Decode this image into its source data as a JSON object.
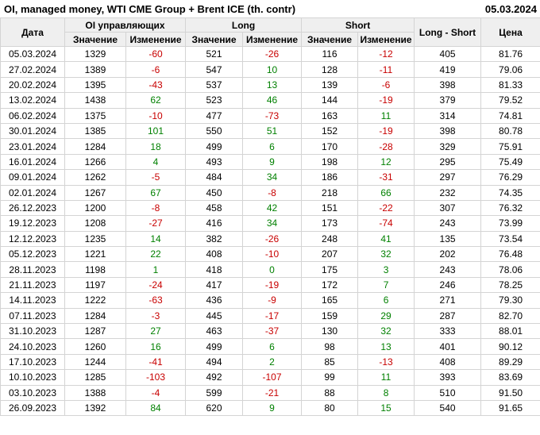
{
  "page": {
    "title": "OI, managed money, WTI CME Group + Brent ICE (th. contr)",
    "report_date": "05.03.2024"
  },
  "colors": {
    "positive": "#008000",
    "negative": "#c80000",
    "border": "#d4d4d4",
    "header_bg": "#efefef"
  },
  "chart_data": {
    "type": "table",
    "title": "OI, managed money, WTI CME Group + Brent ICE (th. contr)",
    "report_date": "05.03.2024",
    "column_groups": [
      {
        "label": "Дата",
        "span": 1
      },
      {
        "label": "OI управляющих",
        "span": 2
      },
      {
        "label": "Long",
        "span": 2
      },
      {
        "label": "Short",
        "span": 2
      },
      {
        "label": "Long - Short",
        "span": 1
      },
      {
        "label": "Цена",
        "span": 1
      }
    ],
    "sub_headers": [
      "Значение",
      "Изменение",
      "Значение",
      "Изменение",
      "Значение",
      "Изменение"
    ],
    "columns": [
      "Дата",
      "OI Значение",
      "OI Изменение",
      "Long Значение",
      "Long Изменение",
      "Short Значение",
      "Short Изменение",
      "Long - Short",
      "Цена"
    ],
    "change_column_indexes": [
      2,
      4,
      6
    ],
    "rows": [
      [
        "05.03.2024",
        "1329",
        "-60",
        "521",
        "-26",
        "116",
        "-12",
        "405",
        "81.76"
      ],
      [
        "27.02.2024",
        "1389",
        "-6",
        "547",
        "10",
        "128",
        "-11",
        "419",
        "79.06"
      ],
      [
        "20.02.2024",
        "1395",
        "-43",
        "537",
        "13",
        "139",
        "-6",
        "398",
        "81.33"
      ],
      [
        "13.02.2024",
        "1438",
        "62",
        "523",
        "46",
        "144",
        "-19",
        "379",
        "79.52"
      ],
      [
        "06.02.2024",
        "1375",
        "-10",
        "477",
        "-73",
        "163",
        "11",
        "314",
        "74.81"
      ],
      [
        "30.01.2024",
        "1385",
        "101",
        "550",
        "51",
        "152",
        "-19",
        "398",
        "80.78"
      ],
      [
        "23.01.2024",
        "1284",
        "18",
        "499",
        "6",
        "170",
        "-28",
        "329",
        "75.91"
      ],
      [
        "16.01.2024",
        "1266",
        "4",
        "493",
        "9",
        "198",
        "12",
        "295",
        "75.49"
      ],
      [
        "09.01.2024",
        "1262",
        "-5",
        "484",
        "34",
        "186",
        "-31",
        "297",
        "76.29"
      ],
      [
        "02.01.2024",
        "1267",
        "67",
        "450",
        "-8",
        "218",
        "66",
        "232",
        "74.35"
      ],
      [
        "26.12.2023",
        "1200",
        "-8",
        "458",
        "42",
        "151",
        "-22",
        "307",
        "76.32"
      ],
      [
        "19.12.2023",
        "1208",
        "-27",
        "416",
        "34",
        "173",
        "-74",
        "243",
        "73.99"
      ],
      [
        "12.12.2023",
        "1235",
        "14",
        "382",
        "-26",
        "248",
        "41",
        "135",
        "73.54"
      ],
      [
        "05.12.2023",
        "1221",
        "22",
        "408",
        "-10",
        "207",
        "32",
        "202",
        "76.48"
      ],
      [
        "28.11.2023",
        "1198",
        "1",
        "418",
        "0",
        "175",
        "3",
        "243",
        "78.06"
      ],
      [
        "21.11.2023",
        "1197",
        "-24",
        "417",
        "-19",
        "172",
        "7",
        "246",
        "78.25"
      ],
      [
        "14.11.2023",
        "1222",
        "-63",
        "436",
        "-9",
        "165",
        "6",
        "271",
        "79.30"
      ],
      [
        "07.11.2023",
        "1284",
        "-3",
        "445",
        "-17",
        "159",
        "29",
        "287",
        "82.70"
      ],
      [
        "31.10.2023",
        "1287",
        "27",
        "463",
        "-37",
        "130",
        "32",
        "333",
        "88.01"
      ],
      [
        "24.10.2023",
        "1260",
        "16",
        "499",
        "6",
        "98",
        "13",
        "401",
        "90.12"
      ],
      [
        "17.10.2023",
        "1244",
        "-41",
        "494",
        "2",
        "85",
        "-13",
        "408",
        "89.29"
      ],
      [
        "10.10.2023",
        "1285",
        "-103",
        "492",
        "-107",
        "99",
        "11",
        "393",
        "83.69"
      ],
      [
        "03.10.2023",
        "1388",
        "-4",
        "599",
        "-21",
        "88",
        "8",
        "510",
        "91.50"
      ],
      [
        "26.09.2023",
        "1392",
        "84",
        "620",
        "9",
        "80",
        "15",
        "540",
        "91.65"
      ]
    ]
  }
}
